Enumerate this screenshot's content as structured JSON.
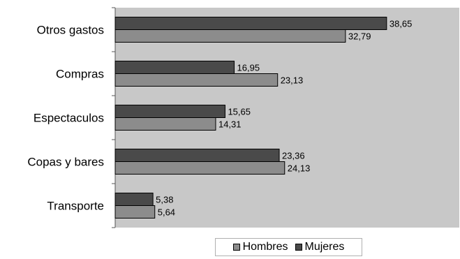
{
  "chart_data": {
    "type": "bar",
    "orientation": "horizontal",
    "categories": [
      "Otros gastos",
      "Compras",
      "Espectaculos",
      "Copas y bares",
      "Transporte"
    ],
    "series": [
      {
        "name": "Mujeres",
        "values": [
          38.65,
          16.95,
          15.65,
          23.36,
          5.38
        ],
        "labels": [
          "38,65",
          "16,95",
          "15,65",
          "23,36",
          "5,38"
        ],
        "color": "#4a4a4a"
      },
      {
        "name": "Hombres",
        "values": [
          32.79,
          23.13,
          14.31,
          24.13,
          5.64
        ],
        "labels": [
          "32,79",
          "23,13",
          "14,31",
          "24,13",
          "5,64"
        ],
        "color": "#8c8c8c"
      }
    ],
    "xlim": [
      0,
      49
    ],
    "grid": false,
    "plot_background": "#c8c8c8",
    "legend_position": "bottom"
  },
  "legend": {
    "hombres": "Hombres",
    "mujeres": "Mujeres"
  }
}
